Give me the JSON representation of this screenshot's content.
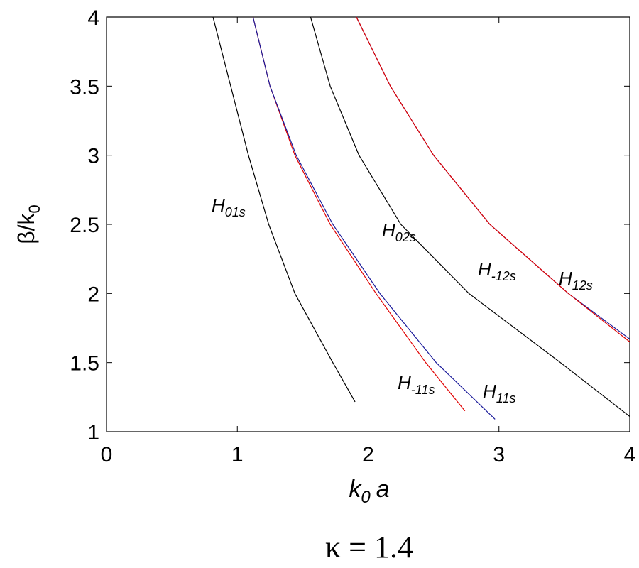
{
  "chart_data": {
    "type": "line",
    "xlabel": {
      "text": "k",
      "sub": "0",
      "after": "a"
    },
    "ylabel": {
      "text": "β/k",
      "sub": "0"
    },
    "caption": "κ = 1.4",
    "xlim": [
      0,
      4
    ],
    "ylim": [
      1,
      4
    ],
    "xticks": [
      0,
      1,
      2,
      3,
      4
    ],
    "yticks": [
      1,
      1.5,
      2,
      2.5,
      3,
      3.5,
      4
    ],
    "series": [
      {
        "label": {
          "text": "H",
          "sub": "01s"
        },
        "color": "#000000",
        "x": [
          0.814,
          1.085,
          1.24,
          1.44,
          1.73,
          1.9
        ],
        "values": [
          4,
          3,
          2.5,
          2,
          1.5,
          1.216
        ]
      },
      {
        "label": {
          "text": "H",
          "sub": "-11s"
        },
        "color": "#e00000",
        "x": [
          1.12,
          1.25,
          1.44,
          1.71,
          2.06,
          2.44,
          2.74
        ],
        "values": [
          4,
          3.5,
          3,
          2.5,
          2,
          1.5,
          1.15
        ]
      },
      {
        "label": {
          "text": "H",
          "sub": "11s"
        },
        "color": "#1a1a9a",
        "x": [
          1.12,
          1.25,
          1.45,
          1.73,
          2.09,
          2.52,
          2.97
        ],
        "values": [
          4,
          3.5,
          3,
          2.5,
          2,
          1.5,
          1.09
        ]
      },
      {
        "label": {
          "text": "H",
          "sub": "02s"
        },
        "color": "#000000",
        "x": [
          1.56,
          1.71,
          1.93,
          2.25,
          2.77,
          3.47,
          4
        ],
        "values": [
          4,
          3.5,
          3,
          2.5,
          2,
          1.5,
          1.11
        ]
      },
      {
        "label": {
          "text": "H",
          "sub": "-12s"
        },
        "color": "#1a1a9a",
        "x": [
          1.91,
          2.17,
          2.5,
          2.93,
          3.53,
          4
        ],
        "values": [
          4,
          3.5,
          3,
          2.5,
          2,
          1.67
        ]
      },
      {
        "label": {
          "text": "H",
          "sub": "12s"
        },
        "color": "#e00000",
        "x": [
          1.91,
          2.17,
          2.5,
          2.93,
          3.53,
          4
        ],
        "values": [
          4,
          3.5,
          3,
          2.5,
          2,
          1.65
        ]
      }
    ]
  }
}
